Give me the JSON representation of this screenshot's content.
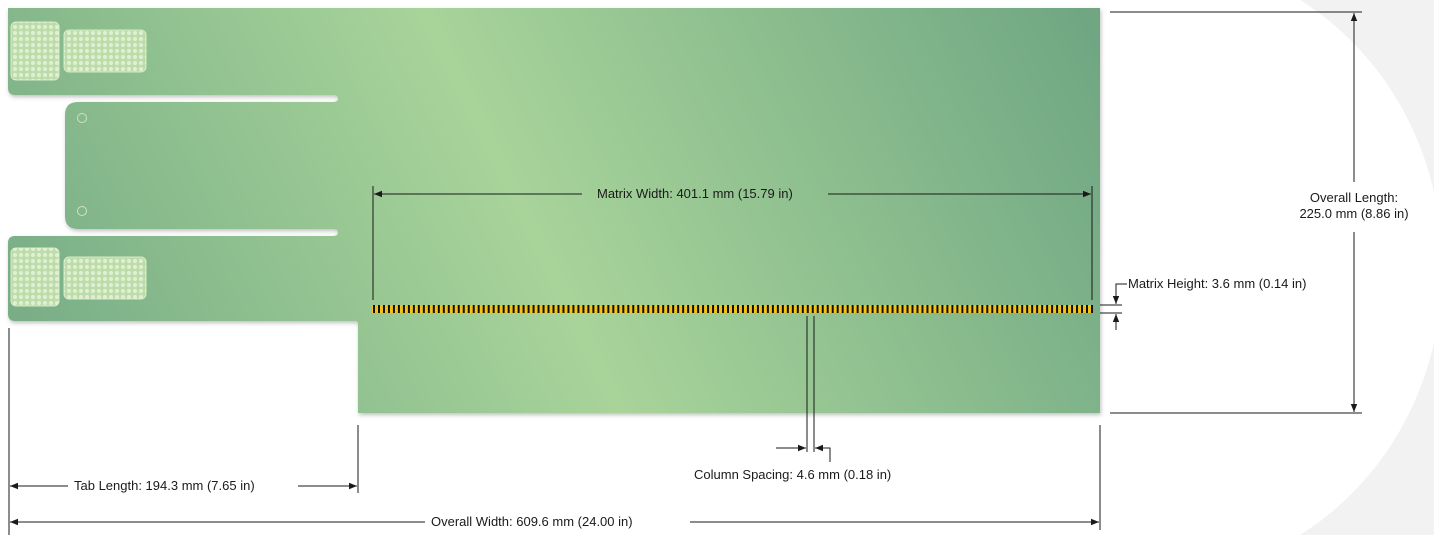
{
  "diagram": {
    "labels": {
      "matrix_width": "Matrix Width: 401.1 mm (15.79 in)",
      "overall_length_line1": "Overall Length:",
      "overall_length_line2": "225.0 mm (8.86 in)",
      "matrix_height": "Matrix Height: 3.6 mm (0.14 in)",
      "column_spacing": "Column Spacing: 4.6 mm (0.18 in)",
      "tab_length": "Tab Length: 194.3 mm (7.65 in)",
      "overall_width": "Overall Width: 609.6 mm (24.00 in)"
    },
    "colors": {
      "board_dark": "#6ea582",
      "board_light": "#a8d49a",
      "pad_fill": "#b8d8a4",
      "matrix_yellow": "#f2c41a",
      "matrix_black": "#111111",
      "dimension_line": "#1a1a1a",
      "backdrop_arc": "#f2f2f2"
    },
    "matrix_column_count": 145
  }
}
